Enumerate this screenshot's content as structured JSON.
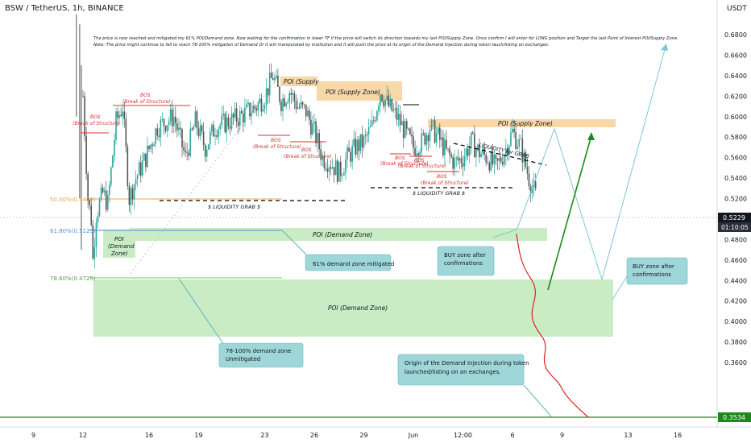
{
  "header": {
    "symbol": "BSW / TetherUS, 1h, BINANCE",
    "currency": "USDT"
  },
  "annotation_text": {
    "line1": "The price is now reached and mitigated my 61% POI/Demand zone.  Now waiting for the confirmation in lower TF if the price will switch its direction towards my last POI/Supply Zone. Once confirm I will enter for LONG position and Target the last Point of Interest POI/Supply Zone.",
    "line2": "Note: The price might continue to fall to reach 78-100% mitigation of Demand Or it will manipulated by institution and it will push the price at its origin of the Demand Injection during token lauch/listing on exchanges."
  },
  "fib_labels": {
    "fib50": "50.00%(0.5400)",
    "fib618": "61.80%(0.5123)",
    "fib786": "78.60%(0.4725)"
  },
  "zone_labels": {
    "poi_supply_small": "POI (Supply",
    "poi_supply_mid": "POI (Supply Zone)",
    "poi_supply_right": "POI (Supply Zone)",
    "poi_demand_left_1": "POI",
    "poi_demand_left_2": "(Demand",
    "poi_demand_left_3": "Zone)",
    "poi_demand_mid": "POI (Demand Zone)",
    "poi_demand_big": "POI (Demand Zone)"
  },
  "bos_labels": {
    "bos_title": "BOS",
    "bos_sub": "(Break of Structure)",
    "bos_sub_bold": "(Break of Structure)"
  },
  "liquidity_labels": {
    "grab": "$ LIQUIDITY GRAB $",
    "for_grab": "LIQUIDITY for GRAB"
  },
  "callouts": {
    "demand_mitigated": "61% demand zone mitigated",
    "buy_zone_1a": "BUY zone after",
    "buy_zone_1b": "confirmations",
    "buy_zone_2a": "BUY zone after",
    "buy_zone_2b": "confirmations",
    "unmitigated_a": "78-100% demand zone",
    "unmitigated_b": "Unmitigated",
    "origin_a": "Origin of the Demand Injection during token",
    "origin_b": "launched/listing on an exchanges."
  },
  "price_badges": {
    "last_price": "0.5229",
    "countdown": "01:10:05",
    "low_price": "0.3534"
  },
  "colors": {
    "up_candle": "#26a69a",
    "down_candle": "#555555",
    "supply_zone": "#f8d7a8",
    "demand_zone": "#c9ecc4",
    "fib50": "#f0a050",
    "fib618": "#4d8fe0",
    "fib786": "#7fbf6f",
    "bos": "#e03030",
    "callout": "#9fd6d8",
    "projection_green": "#1b8a1b",
    "projection_blue": "#7ac7d8",
    "projection_red": "#e02020"
  },
  "chart_data": {
    "type": "candlestick",
    "title": "BSW / TetherUS, 1h, BINANCE",
    "ylabel": "USDT",
    "ylim": [
      0.35,
      0.7
    ],
    "y_ticks": [
      "0.6800",
      "0.6600",
      "0.6400",
      "0.6200",
      "0.6000",
      "0.5800",
      "0.5600",
      "0.5400",
      "0.5200",
      "0.5000",
      "0.4800",
      "0.4600",
      "0.4400",
      "0.4200",
      "0.4000",
      "0.3800",
      "0.3600"
    ],
    "x_ticks": [
      "9",
      "12",
      "16",
      "19",
      "23",
      "26",
      "29",
      "Jun",
      "12:00",
      "6",
      "9",
      "13",
      "16"
    ],
    "x_tick_index": [
      -30,
      0,
      40,
      70,
      110,
      140,
      170,
      200,
      230,
      260,
      290,
      330,
      360
    ],
    "price_path": [
      [
        0,
        0.62
      ],
      [
        3,
        0.52
      ],
      [
        5,
        0.5
      ],
      [
        6,
        0.46
      ],
      [
        8,
        0.505
      ],
      [
        12,
        0.525
      ],
      [
        15,
        0.515
      ],
      [
        20,
        0.595
      ],
      [
        24,
        0.61
      ],
      [
        28,
        0.52
      ],
      [
        32,
        0.54
      ],
      [
        38,
        0.56
      ],
      [
        45,
        0.59
      ],
      [
        55,
        0.6
      ],
      [
        62,
        0.56
      ],
      [
        68,
        0.595
      ],
      [
        74,
        0.57
      ],
      [
        80,
        0.59
      ],
      [
        88,
        0.595
      ],
      [
        95,
        0.6
      ],
      [
        100,
        0.605
      ],
      [
        105,
        0.61
      ],
      [
        110,
        0.62
      ],
      [
        115,
        0.64
      ],
      [
        120,
        0.615
      ],
      [
        125,
        0.625
      ],
      [
        130,
        0.61
      ],
      [
        135,
        0.605
      ],
      [
        140,
        0.585
      ],
      [
        145,
        0.56
      ],
      [
        150,
        0.555
      ],
      [
        155,
        0.545
      ],
      [
        160,
        0.56
      ],
      [
        165,
        0.57
      ],
      [
        170,
        0.575
      ],
      [
        175,
        0.59
      ],
      [
        180,
        0.625
      ],
      [
        185,
        0.61
      ],
      [
        190,
        0.6
      ],
      [
        195,
        0.585
      ],
      [
        200,
        0.57
      ],
      [
        205,
        0.575
      ],
      [
        210,
        0.59
      ],
      [
        215,
        0.58
      ],
      [
        220,
        0.565
      ],
      [
        225,
        0.555
      ],
      [
        230,
        0.56
      ],
      [
        235,
        0.575
      ],
      [
        240,
        0.565
      ],
      [
        245,
        0.56
      ],
      [
        250,
        0.55
      ],
      [
        255,
        0.565
      ],
      [
        260,
        0.585
      ],
      [
        265,
        0.57
      ],
      [
        270,
        0.54
      ],
      [
        274,
        0.523
      ]
    ],
    "fib_levels": [
      {
        "label": "50.00%",
        "value": 0.54
      },
      {
        "label": "61.80%",
        "value": 0.5123
      },
      {
        "label": "78.60%",
        "value": 0.4725
      }
    ],
    "last_price": 0.5229,
    "low_marker": 0.3534
  }
}
